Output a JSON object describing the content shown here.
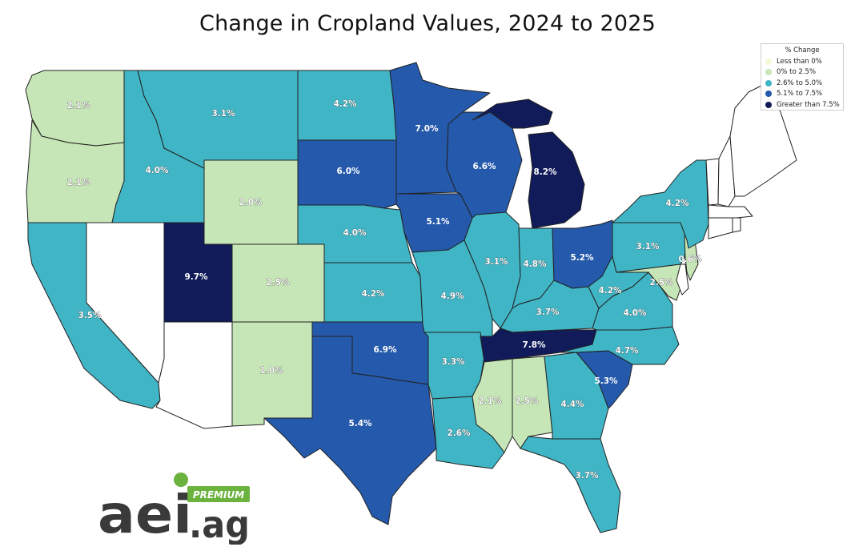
{
  "title": "Change in Cropland Values, 2024 to 2025",
  "legend": {
    "title": "% Change",
    "items": [
      {
        "label": "Less than 0%",
        "color": "#f5f9d8"
      },
      {
        "label": "0% to 2.5%",
        "color": "#c6e6b7"
      },
      {
        "label": "2.6% to 5.0%",
        "color": "#40b5c5"
      },
      {
        "label": "5.1% to 7.5%",
        "color": "#2459ab"
      },
      {
        "label": "Greater than 7.5%",
        "color": "#111b59"
      }
    ]
  },
  "no_data_color": "#ffffff",
  "states": [
    {
      "name": "Washington",
      "value": "2.1%"
    },
    {
      "name": "Oregon",
      "value": "2.1%"
    },
    {
      "name": "California",
      "value": "3.5%"
    },
    {
      "name": "Idaho",
      "value": "4.0%"
    },
    {
      "name": "Montana",
      "value": "3.1%"
    },
    {
      "name": "Wyoming",
      "value": "2.0%"
    },
    {
      "name": "Utah",
      "value": "9.7%"
    },
    {
      "name": "Colorado",
      "value": "2.5%"
    },
    {
      "name": "New Mexico",
      "value": "1.0%"
    },
    {
      "name": "North Dakota",
      "value": "4.2%"
    },
    {
      "name": "South Dakota",
      "value": "6.0%"
    },
    {
      "name": "Nebraska",
      "value": "4.0%"
    },
    {
      "name": "Kansas",
      "value": "4.2%"
    },
    {
      "name": "Oklahoma",
      "value": "6.9%"
    },
    {
      "name": "Texas",
      "value": "5.4%"
    },
    {
      "name": "Minnesota",
      "value": "7.0%"
    },
    {
      "name": "Iowa",
      "value": "5.1%"
    },
    {
      "name": "Missouri",
      "value": "4.9%"
    },
    {
      "name": "Arkansas",
      "value": "3.3%"
    },
    {
      "name": "Louisiana",
      "value": "2.6%"
    },
    {
      "name": "Wisconsin",
      "value": "6.6%"
    },
    {
      "name": "Illinois",
      "value": "3.1%"
    },
    {
      "name": "Michigan",
      "value": "8.2%"
    },
    {
      "name": "Indiana",
      "value": "4.8%"
    },
    {
      "name": "Ohio",
      "value": "5.2%"
    },
    {
      "name": "Kentucky",
      "value": "3.7%"
    },
    {
      "name": "Tennessee",
      "value": "7.8%"
    },
    {
      "name": "Mississippi",
      "value": "2.1%"
    },
    {
      "name": "Alabama",
      "value": "2.5%"
    },
    {
      "name": "Georgia",
      "value": "4.4%"
    },
    {
      "name": "Florida",
      "value": "3.7%"
    },
    {
      "name": "South Carolina",
      "value": "5.3%"
    },
    {
      "name": "North Carolina",
      "value": "4.7%"
    },
    {
      "name": "Virginia",
      "value": "4.0%"
    },
    {
      "name": "West Virginia",
      "value": "4.2%"
    },
    {
      "name": "Pennsylvania",
      "value": "3.1%"
    },
    {
      "name": "New York",
      "value": "4.2%"
    },
    {
      "name": "New Jersey",
      "value": "0.6%"
    },
    {
      "name": "Maryland",
      "value": "2.5%"
    },
    {
      "name": "Delaware",
      "value": ""
    },
    {
      "name": "Nevada",
      "value": ""
    },
    {
      "name": "Arizona",
      "value": ""
    },
    {
      "name": "Vermont",
      "value": ""
    },
    {
      "name": "New Hampshire",
      "value": ""
    },
    {
      "name": "Maine",
      "value": ""
    },
    {
      "name": "Massachusetts",
      "value": ""
    },
    {
      "name": "Connecticut",
      "value": ""
    },
    {
      "name": "Rhode Island",
      "value": ""
    }
  ],
  "logo": {
    "main": "aei",
    "suffix": ".ag",
    "badge": "PREMIUM",
    "brand_dark": "#3a3a3a",
    "brand_green": "#6bb23e"
  }
}
